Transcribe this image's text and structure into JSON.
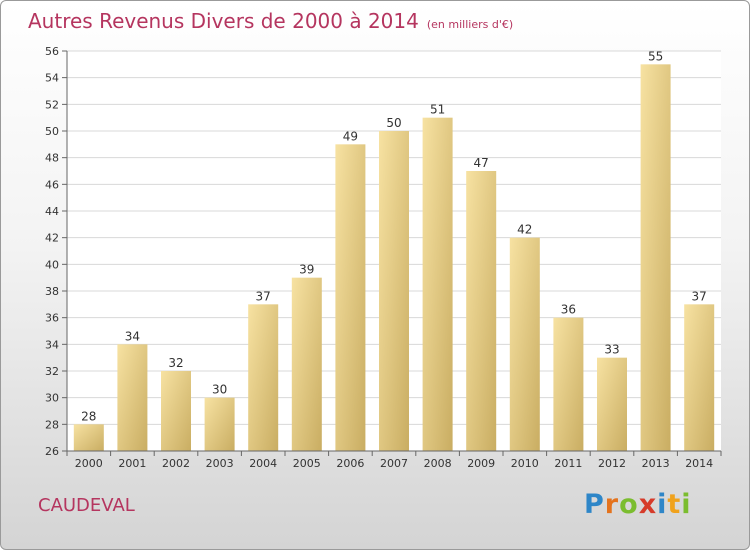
{
  "header": {
    "title": "Autres Revenus Divers de 2000 à 2014",
    "subtitle": "(en milliers d'€)"
  },
  "footer": {
    "commune": "CAUDEVAL",
    "logo": "Proxiti"
  },
  "colors": {
    "title": "#b5355f",
    "bar_light": "#f7e2a2",
    "bar_dark": "#c9ad62"
  },
  "chart_data": {
    "type": "bar",
    "title": "Autres Revenus Divers de 2000 à 2014",
    "subtitle": "(en milliers d'€)",
    "categories": [
      "2000",
      "2001",
      "2002",
      "2003",
      "2004",
      "2005",
      "2006",
      "2007",
      "2008",
      "2009",
      "2010",
      "2011",
      "2012",
      "2013",
      "2014"
    ],
    "values": [
      28,
      34,
      32,
      30,
      37,
      39,
      49,
      50,
      51,
      47,
      42,
      36,
      33,
      55,
      37
    ],
    "ylim": [
      26,
      56
    ],
    "yticks": [
      26,
      28,
      30,
      32,
      34,
      36,
      38,
      40,
      42,
      44,
      46,
      48,
      50,
      52,
      54,
      56
    ],
    "grid": true,
    "data_labels": true
  }
}
